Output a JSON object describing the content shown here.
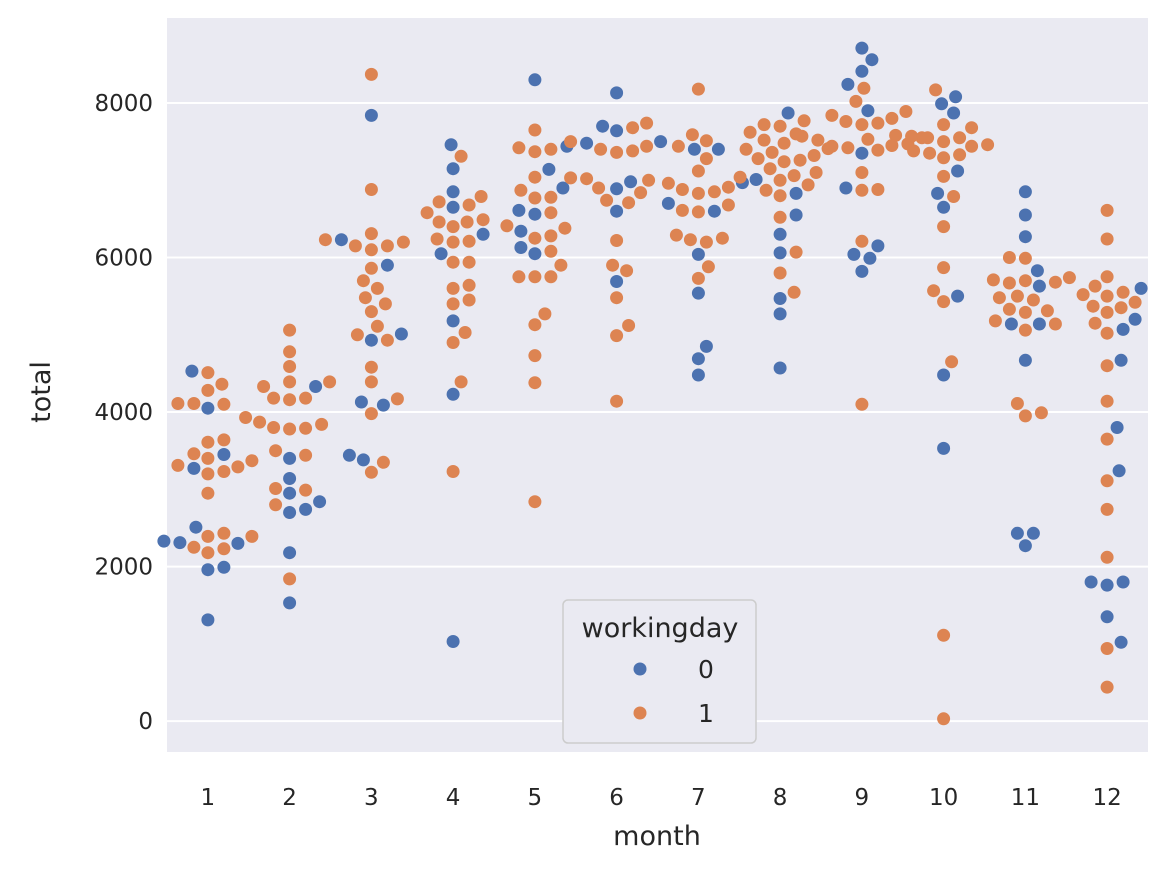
{
  "chart_data": {
    "type": "swarm",
    "xlabel": "month",
    "ylabel": "total",
    "categories": [
      "1",
      "2",
      "3",
      "4",
      "5",
      "6",
      "7",
      "8",
      "9",
      "10",
      "11",
      "12"
    ],
    "ylim": [
      -400,
      9100
    ],
    "yticks": [
      0,
      2000,
      4000,
      6000,
      8000
    ],
    "grid": true,
    "legend": {
      "title": "workingday",
      "placement": "lower-center",
      "entries": [
        {
          "label": "0",
          "color": "#4c72b0"
        },
        {
          "label": "1",
          "color": "#dd8452"
        }
      ]
    },
    "series": [
      {
        "name": "0",
        "color": "#4c72b0",
        "values": [
          [
            2300,
            1990,
            1960,
            1310,
            3450,
            3270,
            4050,
            4530,
            2510,
            2330,
            2310
          ],
          [
            4330,
            3400,
            3140,
            2950,
            2740,
            2700,
            2840,
            2180,
            1530
          ],
          [
            6230,
            5010,
            4930,
            5900,
            7840,
            4090,
            4130,
            3380,
            3440
          ],
          [
            7460,
            7150,
            6850,
            6650,
            6300,
            6050,
            5180,
            4230,
            1030
          ],
          [
            8300,
            7440,
            7140,
            6900,
            6610,
            6560,
            6340,
            6130,
            6050
          ],
          [
            8130,
            7700,
            7640,
            7500,
            7480,
            6980,
            6890,
            6600,
            5690
          ],
          [
            7400,
            7400,
            6970,
            6700,
            6600,
            6040,
            5540,
            4850,
            4690,
            4480
          ],
          [
            7870,
            7010,
            6830,
            6550,
            6300,
            6060,
            5470,
            5270,
            4570
          ],
          [
            8710,
            8560,
            8410,
            8240,
            7900,
            7350,
            6900,
            6150,
            5990,
            6040,
            5820
          ],
          [
            8080,
            7990,
            7870,
            7120,
            6830,
            6650,
            5500,
            4480,
            3530
          ],
          [
            6850,
            6550,
            6270,
            5830,
            5630,
            5140,
            5140,
            4670,
            2430,
            2430,
            2270
          ],
          [
            5600,
            5200,
            5070,
            4670,
            3800,
            3240,
            1800,
            1800,
            1760,
            1350,
            1020
          ]
        ]
      },
      {
        "name": "1",
        "color": "#dd8452",
        "values": [
          [
            4510,
            4360,
            4280,
            4110,
            4100,
            4110,
            3640,
            3610,
            3460,
            3400,
            3370,
            3310,
            3290,
            3230,
            3200,
            2950,
            2430,
            2390,
            2390,
            2250,
            2230,
            2180
          ],
          [
            5060,
            4780,
            4590,
            4390,
            4390,
            4330,
            4180,
            4180,
            4160,
            3930,
            3870,
            3840,
            3800,
            3790,
            3780,
            3500,
            3440,
            3010,
            2990,
            2800,
            1840
          ],
          [
            8370,
            6880,
            6310,
            6230,
            6200,
            6150,
            6150,
            6100,
            5860,
            5700,
            5600,
            5480,
            5400,
            5300,
            5110,
            5000,
            4930,
            4580,
            4390,
            4170,
            3980,
            3350,
            3220
          ],
          [
            7310,
            6790,
            6720,
            6680,
            6580,
            6490,
            6460,
            6460,
            6400,
            6240,
            6210,
            6200,
            5940,
            5940,
            5640,
            5600,
            5450,
            5400,
            5030,
            4900,
            4390,
            3230
          ],
          [
            7650,
            7420,
            7400,
            7370,
            7040,
            6870,
            6780,
            6770,
            6580,
            6410,
            6380,
            6280,
            6250,
            6080,
            5900,
            5750,
            5750,
            5750,
            5270,
            5130,
            4730,
            4380,
            2840
          ],
          [
            7740,
            7680,
            7500,
            7440,
            7400,
            7380,
            7360,
            7030,
            7020,
            7000,
            6900,
            6840,
            6740,
            6710,
            6220,
            5900,
            5830,
            5480,
            5120,
            4990,
            4140
          ],
          [
            8180,
            7590,
            7510,
            7440,
            7280,
            7120,
            6960,
            6910,
            6880,
            6850,
            6830,
            6680,
            6610,
            6590,
            6290,
            6250,
            6230,
            6200,
            5880,
            5730
          ],
          [
            7770,
            7720,
            7700,
            7620,
            7600,
            7520,
            7480,
            7410,
            7400,
            7360,
            7320,
            7280,
            7260,
            7240,
            7150,
            7100,
            7060,
            7040,
            7000,
            6940,
            6870,
            6800,
            6520,
            6070,
            5800,
            5550
          ],
          [
            8190,
            8020,
            7890,
            7840,
            7800,
            7760,
            7740,
            7720,
            7570,
            7550,
            7530,
            7520,
            7470,
            7450,
            7440,
            7420,
            7390,
            7100,
            6880,
            6870,
            6210,
            4100
          ],
          [
            8170,
            7720,
            7680,
            7580,
            7570,
            7550,
            7550,
            7500,
            7460,
            7440,
            7380,
            7350,
            7330,
            7290,
            7050,
            6790,
            6400,
            5870,
            5570,
            5430,
            4650,
            1110,
            30
          ],
          [
            6000,
            5990,
            5740,
            5710,
            5700,
            5680,
            5670,
            5500,
            5480,
            5450,
            5330,
            5310,
            5290,
            5180,
            5140,
            5060,
            4110,
            3990,
            3950
          ],
          [
            6610,
            6240,
            5750,
            5630,
            5550,
            5520,
            5500,
            5420,
            5370,
            5350,
            5290,
            5150,
            5020,
            4600,
            4140,
            3650,
            3110,
            2740,
            2120,
            940,
            440
          ]
        ]
      }
    ]
  }
}
